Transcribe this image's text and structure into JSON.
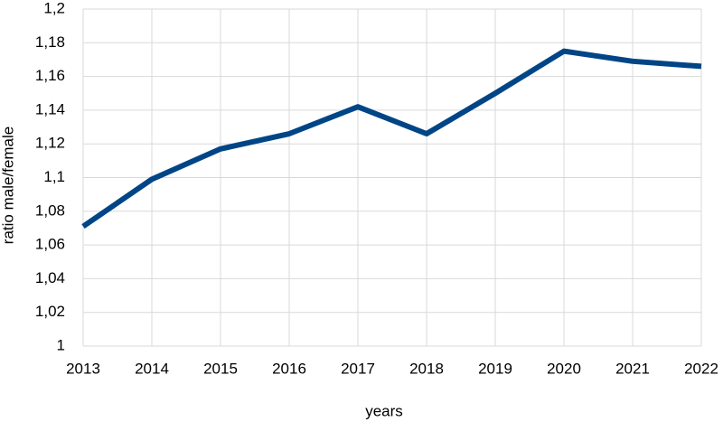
{
  "chart_data": {
    "type": "line",
    "x_label": "years",
    "y_label": "ratio male/female",
    "x": [
      2013,
      2014,
      2015,
      2016,
      2017,
      2018,
      2019,
      2020,
      2021,
      2022
    ],
    "xlim": [
      2013,
      2022
    ],
    "xticks": [
      2013,
      2014,
      2015,
      2016,
      2017,
      2018,
      2019,
      2020,
      2021,
      2022
    ],
    "series": [
      {
        "name": "ratio male/female",
        "color": "#004586",
        "values": [
          1.071,
          1.099,
          1.117,
          1.126,
          1.142,
          1.126,
          1.15,
          1.175,
          1.169,
          1.166
        ]
      }
    ],
    "ylim": [
      1,
      1.2
    ],
    "yticks": [
      1,
      {
        "value": 1.02,
        "label": "1,02"
      },
      {
        "value": 1.04,
        "label": "1,04"
      },
      {
        "value": 1.06,
        "label": "1,06"
      },
      {
        "value": 1.08,
        "label": "1,08"
      },
      {
        "value": 1.1,
        "label": "1,1"
      },
      {
        "value": 1.12,
        "label": "1,12"
      },
      {
        "value": 1.14,
        "label": "1,14"
      },
      {
        "value": 1.16,
        "label": "1,16"
      },
      {
        "value": 1.18,
        "label": "1,18"
      },
      {
        "value": 1.2,
        "label": "1,2"
      }
    ],
    "grid": true
  }
}
